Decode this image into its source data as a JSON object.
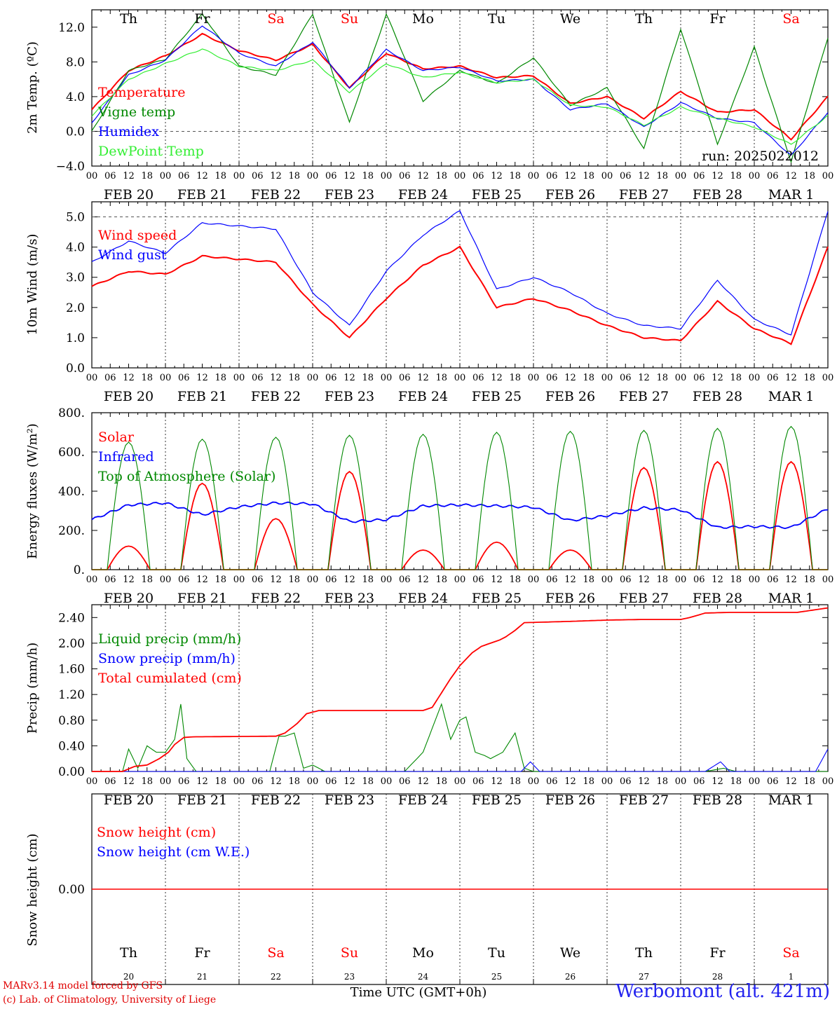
{
  "chart_data": [
    {
      "type": "line",
      "ylabel": "2m Temp. (ºC)",
      "ylim": [
        -4.0,
        14.0
      ],
      "yticks": [
        "−4.0",
        "0.0",
        "4.0",
        "8.0",
        "12.0"
      ],
      "yticks_values": [
        -4,
        0,
        4,
        8,
        12
      ],
      "dashed_reference": [
        0.0
      ],
      "run_label": "run: 2025022012",
      "x_hours": [
        0,
        12,
        24,
        36,
        48,
        60,
        72,
        84,
        96,
        108,
        120,
        132,
        144,
        156,
        168,
        180,
        192,
        204,
        216,
        228,
        240
      ],
      "series": [
        {
          "name": "Temperature",
          "color": "#ff0000",
          "values": [
            2.5,
            7.0,
            8.7,
            11.2,
            9.3,
            8.2,
            10.0,
            5.0,
            9.0,
            7.2,
            7.5,
            6.2,
            6.4,
            3.2,
            4.0,
            1.5,
            4.6,
            2.2,
            2.5,
            -0.9,
            4.0
          ]
        },
        {
          "name": "Vigne temp",
          "color": "#008800",
          "values": [
            0.0,
            7.0,
            8.3,
            13.5,
            7.5,
            6.5,
            13.5,
            1.0,
            13.5,
            3.5,
            7.0,
            5.5,
            8.5,
            3.0,
            5.0,
            -2.0,
            11.8,
            -1.5,
            9.7,
            -3.5,
            10.8
          ]
        },
        {
          "name": "Humidex",
          "color": "#0000ff",
          "values": [
            1.0,
            6.5,
            8.2,
            12.2,
            9.0,
            7.5,
            10.3,
            5.0,
            9.4,
            7.0,
            7.4,
            5.8,
            6.0,
            2.5,
            3.2,
            0.5,
            3.3,
            1.5,
            1.0,
            -2.8,
            2.2
          ]
        },
        {
          "name": "DewPoint Temp",
          "color": "#33ee33",
          "values": [
            1.8,
            6.0,
            7.8,
            9.5,
            7.5,
            7.0,
            8.2,
            4.5,
            7.8,
            6.2,
            6.8,
            5.6,
            6.0,
            3.0,
            2.8,
            0.7,
            2.8,
            1.5,
            0.5,
            -1.5,
            1.8
          ]
        }
      ]
    },
    {
      "type": "line",
      "ylabel": "10m Wind (m/s)",
      "ylim": [
        0.0,
        5.5
      ],
      "yticks": [
        "0.0",
        "1.0",
        "2.0",
        "3.0",
        "4.0",
        "5.0"
      ],
      "yticks_values": [
        0,
        1,
        2,
        3,
        4,
        5
      ],
      "dashed_reference": [
        5.0
      ],
      "x_hours": [
        0,
        12,
        24,
        36,
        48,
        60,
        72,
        84,
        96,
        108,
        120,
        132,
        144,
        156,
        168,
        180,
        192,
        204,
        216,
        228,
        240
      ],
      "series": [
        {
          "name": "Wind speed",
          "color": "#ff0000",
          "values": [
            2.7,
            3.2,
            3.1,
            3.7,
            3.6,
            3.5,
            2.1,
            1.0,
            2.3,
            3.4,
            4.0,
            2.0,
            2.3,
            1.9,
            1.4,
            1.0,
            0.9,
            2.2,
            1.3,
            0.8,
            4.0
          ]
        },
        {
          "name": "Wind gust",
          "color": "#0000ff",
          "values": [
            3.5,
            4.2,
            3.8,
            4.8,
            4.7,
            4.6,
            2.5,
            1.4,
            3.2,
            4.4,
            5.2,
            2.6,
            3.0,
            2.5,
            1.8,
            1.4,
            1.3,
            2.9,
            1.6,
            1.1,
            5.2
          ]
        }
      ]
    },
    {
      "type": "line",
      "ylabel": "Energy fluxes (W/m²)",
      "ylim": [
        0,
        800
      ],
      "yticks": [
        "0.",
        "200.",
        "400.",
        "600.",
        "800."
      ],
      "yticks_values": [
        0,
        200,
        400,
        600,
        800
      ],
      "daily_noon_hours": [
        12,
        36,
        60,
        84,
        108,
        132,
        156,
        180,
        204,
        228
      ],
      "series": [
        {
          "name": "Solar",
          "color": "#ff0000",
          "daily_peak": [
            120,
            440,
            260,
            500,
            100,
            140,
            100,
            520,
            550,
            550
          ]
        },
        {
          "name": "Infrared",
          "color": "#0000ff",
          "x_hours": [
            0,
            12,
            24,
            36,
            48,
            60,
            72,
            84,
            96,
            108,
            120,
            132,
            144,
            156,
            168,
            180,
            192,
            204,
            216,
            228,
            240
          ],
          "values": [
            255,
            330,
            340,
            280,
            320,
            340,
            335,
            245,
            255,
            325,
            330,
            325,
            318,
            250,
            275,
            315,
            305,
            215,
            220,
            215,
            310
          ]
        },
        {
          "name": "Top of Atmosphere (Solar)",
          "color": "#008800",
          "daily_peak": [
            650,
            665,
            675,
            685,
            690,
            700,
            705,
            710,
            720,
            730
          ]
        }
      ]
    },
    {
      "type": "line",
      "ylabel": "Precip (mm/h)",
      "ylim": [
        0,
        2.6
      ],
      "yticks": [
        "0.00",
        "0.40",
        "0.80",
        "1.20",
        "1.60",
        "2.00",
        "2.40"
      ],
      "yticks_values": [
        0,
        0.4,
        0.8,
        1.2,
        1.6,
        2.0,
        2.4
      ],
      "series": [
        {
          "name": "Liquid precip (mm/h)",
          "color": "#008800",
          "x_hours": [
            0,
            8,
            10,
            12,
            15,
            18,
            21,
            24,
            27,
            29,
            31,
            34,
            40,
            58,
            61,
            63,
            66,
            69,
            72,
            74,
            76,
            84,
            102,
            108,
            112,
            114,
            117,
            120,
            122,
            125,
            128,
            130,
            134,
            138,
            141,
            144,
            150,
            200,
            206,
            210,
            240
          ],
          "values": [
            0,
            0,
            0,
            0.35,
            0.05,
            0.4,
            0.3,
            0.3,
            0.5,
            1.05,
            0.2,
            0,
            0,
            0,
            0.55,
            0.55,
            0.6,
            0.05,
            0.1,
            0.05,
            0,
            0,
            0,
            0.3,
            0.8,
            1.05,
            0.5,
            0.8,
            0.85,
            0.3,
            0.25,
            0.2,
            0.3,
            0.6,
            0.05,
            0,
            0,
            0,
            0.05,
            0,
            0
          ]
        },
        {
          "name": "Snow precip (mm/h)",
          "color": "#0000ff",
          "x_hours": [
            0,
            140,
            143,
            146,
            200,
            205,
            208,
            236,
            240
          ],
          "values": [
            0,
            0,
            0.15,
            0,
            0,
            0.15,
            0,
            0,
            0.35
          ]
        },
        {
          "name": "Total cumulated (cm)",
          "color": "#ff0000",
          "x_hours": [
            0,
            10,
            14,
            18,
            22,
            25,
            27,
            30,
            33,
            60,
            63,
            67,
            70,
            74,
            84,
            96,
            108,
            111,
            113,
            117,
            120,
            124,
            127,
            130,
            133,
            135,
            138,
            141,
            156,
            168,
            180,
            192,
            195,
            200,
            208,
            230,
            240
          ],
          "values": [
            0,
            0,
            0.08,
            0.1,
            0.2,
            0.3,
            0.42,
            0.53,
            0.54,
            0.55,
            0.6,
            0.75,
            0.9,
            0.95,
            0.95,
            0.95,
            0.95,
            1.0,
            1.15,
            1.45,
            1.65,
            1.85,
            1.95,
            2.0,
            2.05,
            2.1,
            2.2,
            2.32,
            2.34,
            2.36,
            2.37,
            2.37,
            2.4,
            2.47,
            2.48,
            2.48,
            2.55
          ]
        }
      ]
    },
    {
      "type": "line",
      "ylabel": "Snow height (cm)",
      "yticks": [
        "0.00"
      ],
      "yticks_values": [
        0
      ],
      "series": [
        {
          "name": "Snow height (cm)",
          "color": "#ff0000",
          "values": [
            0,
            0
          ]
        },
        {
          "name": "Snow height (cm W.E.)",
          "color": "#0000ff",
          "values": [
            0,
            0
          ]
        }
      ]
    }
  ],
  "days_top": [
    {
      "label": "Th",
      "color": "#000000"
    },
    {
      "label": "Fr",
      "color": "#000000"
    },
    {
      "label": "Sa",
      "color": "#ff0000"
    },
    {
      "label": "Su",
      "color": "#ff0000"
    },
    {
      "label": "Mo",
      "color": "#000000"
    },
    {
      "label": "Tu",
      "color": "#000000"
    },
    {
      "label": "We",
      "color": "#000000"
    },
    {
      "label": "Th",
      "color": "#000000"
    },
    {
      "label": "Fr",
      "color": "#000000"
    },
    {
      "label": "Sa",
      "color": "#ff0000"
    }
  ],
  "days_bottom": [
    {
      "label": "Th",
      "color": "#000000"
    },
    {
      "label": "Fr",
      "color": "#000000"
    },
    {
      "label": "Sa",
      "color": "#ff0000"
    },
    {
      "label": "Su",
      "color": "#ff0000"
    },
    {
      "label": "Mo",
      "color": "#000000"
    },
    {
      "label": "Tu",
      "color": "#000000"
    },
    {
      "label": "We",
      "color": "#000000"
    },
    {
      "label": "Th",
      "color": "#000000"
    },
    {
      "label": "Fr",
      "color": "#000000"
    },
    {
      "label": "Sa",
      "color": "#ff0000"
    }
  ],
  "day_numbers": [
    "20",
    "21",
    "22",
    "23",
    "24",
    "25",
    "26",
    "27",
    "28",
    "1"
  ],
  "date_labels": [
    "FEB 20",
    "FEB 21",
    "FEB 22",
    "FEB 23",
    "FEB 24",
    "FEB 25",
    "FEB 26",
    "FEB 27",
    "FEB 28",
    "MAR  1"
  ],
  "hour_labels": [
    "00",
    "06",
    "12",
    "18"
  ],
  "footer": {
    "credit_line1": "MARv3.14 model forced by GFS",
    "credit_line2": "(c) Lab. of Climatology, University of Liege",
    "xlabel": "Time UTC (GMT+0h)",
    "station": "Werbomont (alt. 421m)"
  }
}
